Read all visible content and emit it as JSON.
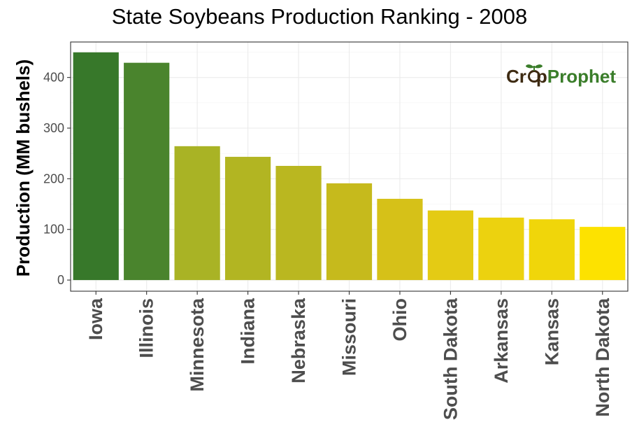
{
  "chart_data": {
    "type": "bar",
    "title": "State Soybeans Production Ranking - 2008",
    "xlabel": "",
    "ylabel": "Production (MM bushels)",
    "categories": [
      "Iowa",
      "Illinois",
      "Minnesota",
      "Indiana",
      "Nebraska",
      "Missouri",
      "Ohio",
      "South Dakota",
      "Arkansas",
      "Kansas",
      "North Dakota"
    ],
    "values": [
      449.6,
      429.0,
      264.3,
      243.3,
      225.4,
      191.0,
      160.4,
      137.4,
      123.3,
      120.0,
      105.0
    ],
    "colors": [
      "#37782a",
      "#4a842d",
      "#a9b325",
      "#b2b522",
      "#bab720",
      "#c6ba1c",
      "#d6c118",
      "#e4cb14",
      "#ecd20f",
      "#f0d60a",
      "#fde200"
    ],
    "ylim": [
      -22,
      470
    ],
    "yticks": [
      0,
      100,
      200,
      300,
      400
    ],
    "grid": true,
    "legend": "none"
  },
  "logo": {
    "part1": "Cr",
    "part2": "p",
    "part3": "Prophet",
    "color_dark": "#3d2a12",
    "color_green": "#3a7d2a",
    "icon": "sprout-icon"
  }
}
